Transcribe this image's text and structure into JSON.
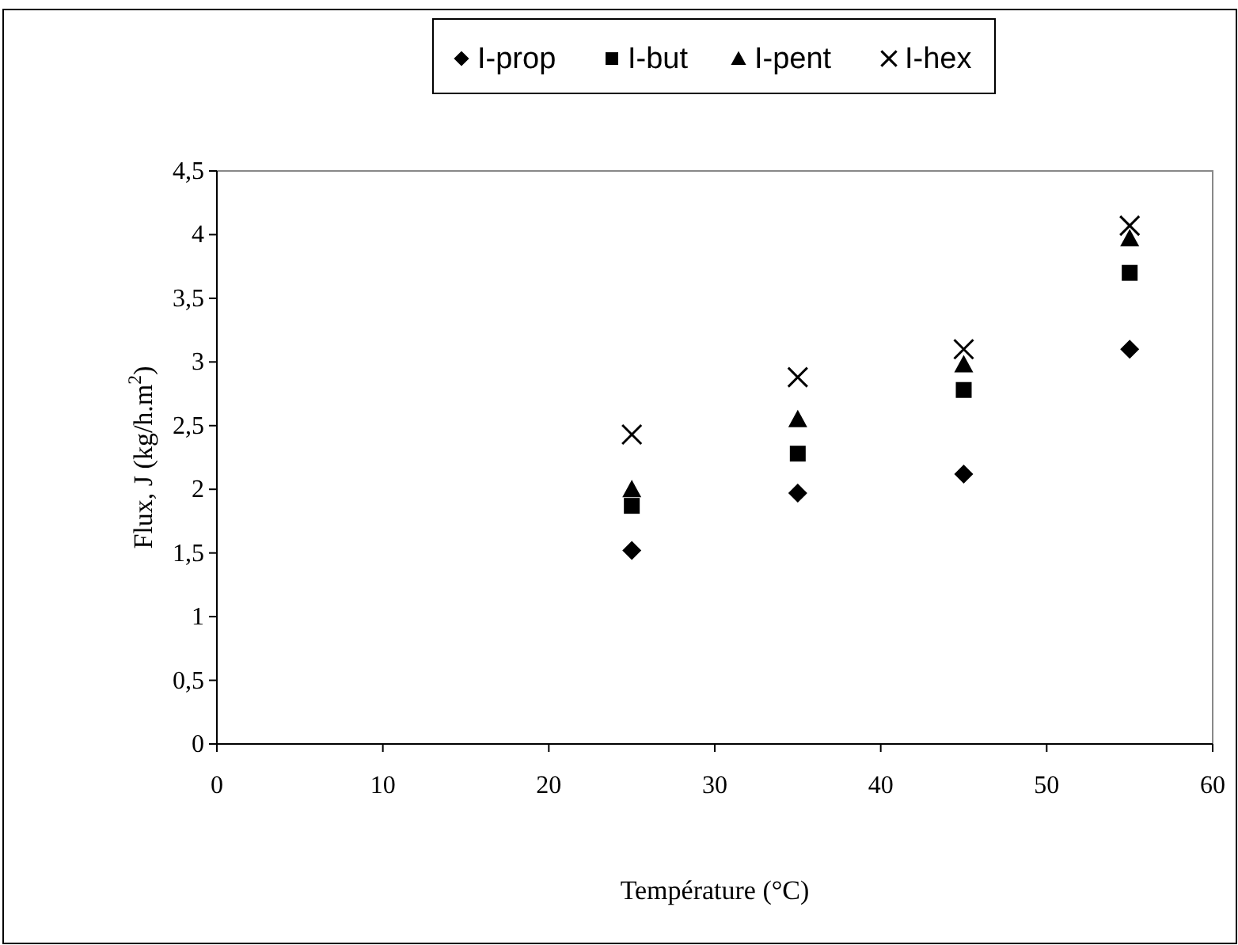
{
  "chart_data": {
    "type": "scatter",
    "xlabel": "Température (°C)",
    "ylabel": "Flux, J (kg/h.m$^{2}$)",
    "xlim": [
      0,
      60
    ],
    "xticks": [
      0,
      10,
      20,
      30,
      40,
      50,
      60
    ],
    "ylim": [
      0,
      4.5
    ],
    "yticks": [
      {
        "value": 0,
        "label": "0"
      },
      {
        "value": 0.5,
        "label": "0,5"
      },
      {
        "value": 1,
        "label": "1"
      },
      {
        "value": 1.5,
        "label": "1,5"
      },
      {
        "value": 2,
        "label": "2"
      },
      {
        "value": 2.5,
        "label": "2,5"
      },
      {
        "value": 3,
        "label": "3"
      },
      {
        "value": 3.5,
        "label": "3,5"
      },
      {
        "value": 4,
        "label": "4"
      },
      {
        "value": 4.5,
        "label": "4,5"
      }
    ],
    "x": [
      25,
      35,
      45,
      55
    ],
    "legend": "top",
    "grid": false,
    "series": [
      {
        "name": "I-prop",
        "color": "#000000",
        "marker": "diamond",
        "values": [
          1.52,
          1.97,
          2.12,
          3.1
        ]
      },
      {
        "name": "I-but",
        "color": "#000000",
        "marker": "square",
        "values": [
          1.87,
          2.28,
          2.78,
          3.7
        ]
      },
      {
        "name": "I-pent",
        "color": "#000000",
        "marker": "triangle",
        "values": [
          2.0,
          2.55,
          2.98,
          3.97
        ]
      },
      {
        "name": "I-hex",
        "color": "#000000",
        "marker": "cross",
        "values": [
          2.43,
          2.88,
          3.1,
          4.07
        ]
      }
    ]
  }
}
